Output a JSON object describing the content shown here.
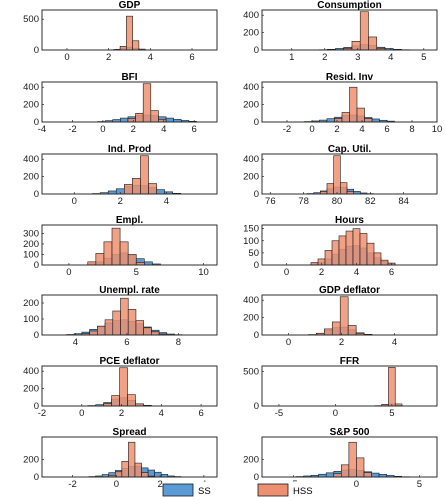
{
  "colors": {
    "ss": "#5B9BD5",
    "hss": "#ED9071",
    "edge": "#1a1a1a"
  },
  "legend": {
    "ss_label": "SS",
    "hss_label": "HSS"
  },
  "chart_data": [
    {
      "type": "bar",
      "title": "GDP",
      "xlim": [
        -1.2,
        7.2
      ],
      "ylim": [
        0,
        650
      ],
      "xticks": [
        0,
        2,
        4,
        6
      ],
      "yticks": [
        0,
        500
      ],
      "ytick_labels": [
        "0",
        "500"
      ],
      "series": [
        {
          "name": "SS",
          "x": [
            2.1,
            2.4,
            2.7,
            3.0,
            3.3,
            3.6,
            3.9
          ],
          "values": [
            3,
            8,
            30,
            45,
            28,
            8,
            3
          ]
        },
        {
          "name": "HSS",
          "x": [
            2.4,
            2.7,
            3.0,
            3.3,
            3.6
          ],
          "values": [
            8,
            60,
            550,
            150,
            15
          ]
        }
      ]
    },
    {
      "type": "bar",
      "title": "Consumption",
      "xlim": [
        0.1,
        5.4
      ],
      "ylim": [
        0,
        460
      ],
      "xticks": [
        1,
        2,
        3,
        4,
        5
      ],
      "yticks": [
        0,
        200,
        400
      ],
      "ytick_labels": [
        "0",
        "200",
        "400"
      ],
      "series": [
        {
          "name": "SS",
          "x": [
            1.95,
            2.2,
            2.45,
            2.7,
            2.95,
            3.2,
            3.45,
            3.7,
            3.95,
            4.2,
            4.45
          ],
          "values": [
            3,
            8,
            18,
            30,
            48,
            62,
            52,
            32,
            18,
            8,
            3
          ]
        },
        {
          "name": "HSS",
          "x": [
            2.7,
            2.95,
            3.2,
            3.45,
            3.7
          ],
          "values": [
            20,
            100,
            440,
            150,
            20
          ]
        }
      ]
    },
    {
      "type": "bar",
      "title": "BFI",
      "xlim": [
        -4,
        7.5
      ],
      "ylim": [
        0,
        460
      ],
      "xticks": [
        -4,
        -2,
        0,
        2,
        4,
        6
      ],
      "yticks": [
        0,
        200,
        400
      ],
      "ytick_labels": [
        "0",
        "200",
        "400"
      ],
      "series": [
        {
          "name": "SS",
          "x": [
            -0.1,
            0.4,
            0.9,
            1.4,
            1.9,
            2.4,
            2.9,
            3.4,
            3.9,
            4.4,
            4.9,
            5.4,
            5.9
          ],
          "values": [
            5,
            15,
            28,
            45,
            60,
            75,
            80,
            72,
            60,
            45,
            30,
            18,
            8
          ]
        },
        {
          "name": "HSS",
          "x": [
            1.9,
            2.4,
            2.9,
            3.4,
            3.9
          ],
          "values": [
            40,
            100,
            440,
            130,
            30
          ]
        }
      ]
    },
    {
      "type": "bar",
      "title": "Resid. Inv",
      "xlim": [
        -4,
        10
      ],
      "ylim": [
        0,
        460
      ],
      "xticks": [
        -2,
        0,
        2,
        4,
        6,
        8,
        10
      ],
      "yticks": [
        0,
        200,
        400
      ],
      "ytick_labels": [
        "0",
        "200",
        "400"
      ],
      "series": [
        {
          "name": "SS",
          "x": [
            -0.3,
            0.3,
            0.9,
            1.5,
            2.1,
            2.7,
            3.3,
            3.9,
            4.5,
            5.1,
            5.7,
            6.3
          ],
          "values": [
            5,
            12,
            22,
            38,
            55,
            75,
            80,
            70,
            52,
            35,
            20,
            10
          ]
        },
        {
          "name": "HSS",
          "x": [
            2.1,
            2.7,
            3.3,
            3.9,
            4.5
          ],
          "values": [
            40,
            110,
            400,
            160,
            40
          ]
        }
      ]
    },
    {
      "type": "bar",
      "title": "Ind. Prod",
      "xlim": [
        -1.4,
        6.2
      ],
      "ylim": [
        0,
        460
      ],
      "xticks": [
        0,
        2,
        4
      ],
      "yticks": [
        0,
        200,
        400
      ],
      "ytick_labels": [
        "0",
        "200",
        "400"
      ],
      "series": [
        {
          "name": "SS",
          "x": [
            0.95,
            1.3,
            1.65,
            2.0,
            2.35,
            2.7,
            3.05,
            3.4,
            3.75,
            4.1,
            4.45
          ],
          "values": [
            5,
            15,
            35,
            60,
            85,
            100,
            95,
            75,
            50,
            25,
            8
          ]
        },
        {
          "name": "HSS",
          "x": [
            2.35,
            2.7,
            3.05,
            3.4
          ],
          "values": [
            110,
            180,
            440,
            120
          ]
        }
      ]
    },
    {
      "type": "bar",
      "title": "Cap. Util.",
      "xlim": [
        75.5,
        86
      ],
      "ylim": [
        0,
        460
      ],
      "xticks": [
        76,
        78,
        80,
        82,
        84
      ],
      "yticks": [
        0,
        200,
        400
      ],
      "ytick_labels": [
        "0",
        "200",
        "400"
      ],
      "series": [
        {
          "name": "SS",
          "x": [
            78.4,
            78.8,
            79.2,
            79.6,
            80.0,
            80.4,
            80.8,
            81.2,
            81.6,
            82.0
          ],
          "values": [
            5,
            15,
            35,
            60,
            80,
            75,
            55,
            30,
            12,
            4
          ]
        },
        {
          "name": "HSS",
          "x": [
            79.2,
            79.6,
            80.0,
            80.4,
            80.8
          ],
          "values": [
            30,
            120,
            440,
            130,
            30
          ]
        }
      ]
    },
    {
      "type": "bar",
      "title": "Empl.",
      "xlim": [
        -2,
        11
      ],
      "ylim": [
        0,
        380
      ],
      "xticks": [
        0,
        5,
        10
      ],
      "yticks": [
        0,
        100,
        200,
        300
      ],
      "ytick_labels": [
        "0",
        "100",
        "200",
        "300"
      ],
      "series": [
        {
          "name": "SS",
          "x": [
            1.7,
            2.3,
            2.9,
            3.5,
            4.1,
            4.7,
            5.3,
            5.9,
            6.5
          ],
          "values": [
            10,
            30,
            65,
            100,
            115,
            95,
            60,
            30,
            10
          ]
        },
        {
          "name": "HSS",
          "x": [
            1.7,
            2.3,
            2.9,
            3.5,
            4.1,
            4.7,
            5.3
          ],
          "values": [
            30,
            110,
            220,
            350,
            220,
            100,
            25
          ]
        }
      ]
    },
    {
      "type": "bar",
      "title": "Hours",
      "xlim": [
        -1.4,
        8.6
      ],
      "ylim": [
        0,
        165
      ],
      "xticks": [
        0,
        2,
        4,
        6
      ],
      "yticks": [
        0,
        50,
        100,
        150
      ],
      "ytick_labels": [
        "0",
        "50",
        "100",
        "150"
      ],
      "series": [
        {
          "name": "SS",
          "x": [
            1.6,
            2.0,
            2.4,
            2.8,
            3.2,
            3.6,
            4.0,
            4.4,
            4.8,
            5.2,
            5.6,
            6.0
          ],
          "values": [
            5,
            12,
            25,
            45,
            65,
            78,
            80,
            70,
            50,
            30,
            15,
            5
          ]
        },
        {
          "name": "HSS",
          "x": [
            1.6,
            2.0,
            2.4,
            2.8,
            3.2,
            3.6,
            4.0,
            4.4,
            4.8,
            5.2,
            5.6,
            6.0
          ],
          "values": [
            10,
            25,
            60,
            100,
            120,
            140,
            150,
            130,
            90,
            50,
            20,
            8
          ]
        }
      ]
    },
    {
      "type": "bar",
      "title": "Unempl. rate",
      "xlim": [
        2.7,
        9.5
      ],
      "ylim": [
        0,
        250
      ],
      "xticks": [
        4,
        6,
        8
      ],
      "yticks": [
        0,
        100,
        200
      ],
      "ytick_labels": [
        "0",
        "100",
        "200"
      ],
      "series": [
        {
          "name": "SS",
          "x": [
            3.8,
            4.1,
            4.4,
            4.7,
            5.0,
            5.3,
            5.6,
            5.9,
            6.2,
            6.5,
            6.8,
            7.1,
            7.4,
            7.7,
            8.0
          ],
          "values": [
            3,
            8,
            18,
            35,
            55,
            75,
            90,
            95,
            85,
            70,
            50,
            30,
            15,
            6,
            2
          ]
        },
        {
          "name": "HSS",
          "x": [
            4.4,
            4.7,
            5.0,
            5.3,
            5.6,
            5.9,
            6.2,
            6.5,
            6.8,
            7.1,
            7.4
          ],
          "values": [
            8,
            25,
            55,
            95,
            150,
            230,
            160,
            90,
            45,
            20,
            6
          ]
        }
      ]
    },
    {
      "type": "bar",
      "title": "GDP deflator",
      "xlim": [
        -1,
        5.6
      ],
      "ylim": [
        0,
        460
      ],
      "xticks": [
        0,
        2,
        4
      ],
      "yticks": [
        0,
        200,
        400
      ],
      "ytick_labels": [
        "0",
        "200",
        "400"
      ],
      "series": [
        {
          "name": "SS",
          "x": [
            0.9,
            1.2,
            1.5,
            1.8,
            2.1,
            2.4,
            2.7,
            3.0
          ],
          "values": [
            5,
            20,
            50,
            85,
            90,
            60,
            25,
            8
          ]
        },
        {
          "name": "HSS",
          "x": [
            1.2,
            1.5,
            1.8,
            2.1,
            2.4,
            2.7
          ],
          "values": [
            20,
            70,
            150,
            440,
            110,
            20
          ]
        }
      ]
    },
    {
      "type": "bar",
      "title": "PCE deflator",
      "xlim": [
        -2,
        6.8
      ],
      "ylim": [
        0,
        460
      ],
      "xticks": [
        -2,
        0,
        2,
        4,
        6
      ],
      "yticks": [
        0,
        200,
        400
      ],
      "ytick_labels": [
        "0",
        "200",
        "400"
      ],
      "series": [
        {
          "name": "SS",
          "x": [
            0.5,
            0.9,
            1.3,
            1.7,
            2.1,
            2.5,
            2.9,
            3.3
          ],
          "values": [
            5,
            15,
            40,
            80,
            95,
            65,
            25,
            8
          ]
        },
        {
          "name": "HSS",
          "x": [
            1.3,
            1.7,
            2.1,
            2.5,
            2.9
          ],
          "values": [
            30,
            120,
            440,
            130,
            25
          ]
        }
      ]
    },
    {
      "type": "bar",
      "title": "FFR",
      "xlim": [
        -6.5,
        9
      ],
      "ylim": [
        0,
        580
      ],
      "xticks": [
        -5,
        0,
        5
      ],
      "yticks": [
        0,
        500
      ],
      "ytick_labels": [
        "0",
        "500"
      ],
      "series": [
        {
          "name": "SS",
          "x": [
            3.8,
            4.4,
            5.0,
            5.6
          ],
          "values": [
            5,
            20,
            30,
            10
          ]
        },
        {
          "name": "HSS",
          "x": [
            4.4,
            5.0,
            5.6
          ],
          "values": [
            20,
            560,
            30
          ]
        }
      ]
    },
    {
      "type": "bar",
      "title": "Spread",
      "xlim": [
        -3.4,
        4.6
      ],
      "ylim": [
        0,
        460
      ],
      "xticks": [
        -2,
        0,
        2,
        4
      ],
      "yticks": [
        0,
        200
      ],
      "ytick_labels": [
        "0",
        "200"
      ],
      "series": [
        {
          "name": "SS",
          "x": [
            -1.1,
            -0.8,
            -0.5,
            -0.2,
            0.1,
            0.4,
            0.7,
            1.0,
            1.3,
            1.6,
            1.9,
            2.2,
            2.5,
            2.8
          ],
          "values": [
            5,
            12,
            28,
            50,
            75,
            100,
            120,
            125,
            105,
            80,
            55,
            30,
            12,
            5
          ]
        },
        {
          "name": "HSS",
          "x": [
            -0.2,
            0.1,
            0.4,
            0.7,
            1.0,
            1.3,
            1.6
          ],
          "values": [
            20,
            60,
            180,
            400,
            160,
            50,
            10
          ]
        }
      ]
    },
    {
      "type": "bar",
      "title": "S&P 500",
      "xlim": [
        -7.5,
        6.4
      ],
      "ylim": [
        0,
        460
      ],
      "xticks": [
        -5,
        0,
        5
      ],
      "yticks": [
        0,
        200
      ],
      "ytick_labels": [
        "0",
        "200"
      ],
      "series": [
        {
          "name": "SS",
          "x": [
            -4.5,
            -3.9,
            -3.3,
            -2.7,
            -2.1,
            -1.5,
            -0.9,
            -0.3,
            0.3,
            0.9,
            1.5,
            2.1,
            2.7,
            3.3,
            3.9
          ],
          "values": [
            5,
            12,
            20,
            32,
            48,
            65,
            80,
            85,
            75,
            60,
            45,
            30,
            18,
            8,
            3
          ]
        },
        {
          "name": "HSS",
          "x": [
            -1.5,
            -0.9,
            -0.3,
            0.3,
            0.9
          ],
          "values": [
            40,
            140,
            400,
            220,
            50
          ]
        }
      ]
    }
  ]
}
